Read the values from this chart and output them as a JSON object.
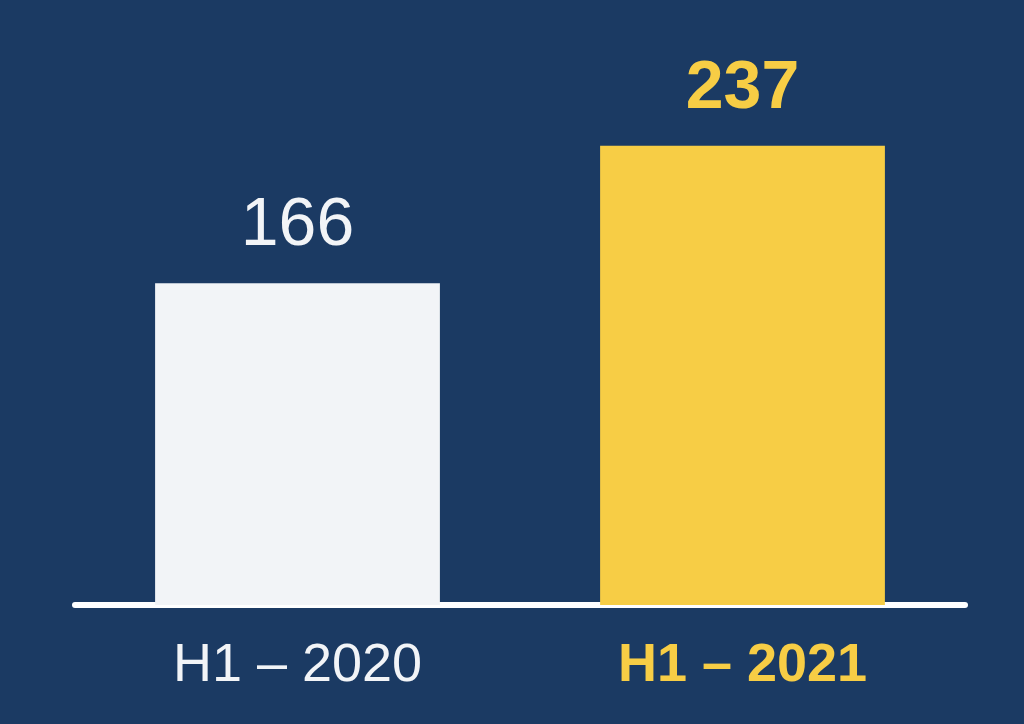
{
  "chart_data": {
    "type": "bar",
    "categories": [
      "H1 – 2020",
      "H1 – 2021"
    ],
    "values": [
      166,
      237
    ],
    "colors": [
      "#f2f4f7",
      "#f7cd45"
    ],
    "data_labels": true
  }
}
